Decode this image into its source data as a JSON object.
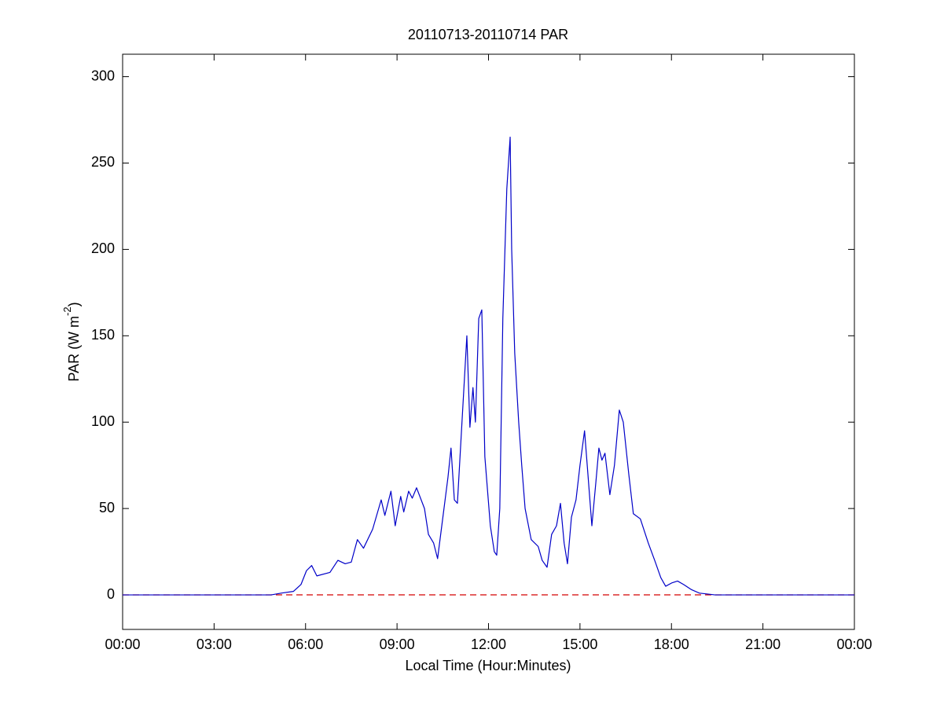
{
  "chart_data": {
    "type": "line",
    "title": "20110713-20110714 PAR",
    "xlabel": "Local Time (Hour:Minutes)",
    "ylabel": [
      "PAR (W m",
      "-2",
      ")"
    ],
    "xlim": [
      0,
      24
    ],
    "xticks": [
      {
        "value": 0,
        "label": "00:00"
      },
      {
        "value": 3,
        "label": "03:00"
      },
      {
        "value": 6,
        "label": "06:00"
      },
      {
        "value": 9,
        "label": "09:00"
      },
      {
        "value": 12,
        "label": "12:00"
      },
      {
        "value": 15,
        "label": "15:00"
      },
      {
        "value": 18,
        "label": "18:00"
      },
      {
        "value": 21,
        "label": "21:00"
      },
      {
        "value": 24,
        "label": "00:00"
      }
    ],
    "ylim": [
      -20,
      313
    ],
    "yticks": [
      0,
      50,
      100,
      150,
      200,
      250,
      300
    ],
    "grid": false,
    "hline": 0,
    "hline_color": "#d40000",
    "series": [
      {
        "color": "#0000c8",
        "x": [
          0,
          4.87,
          5.2,
          5.6,
          5.85,
          6.03,
          6.2,
          6.37,
          6.8,
          7.06,
          7.3,
          7.5,
          7.7,
          7.9,
          8.2,
          8.48,
          8.6,
          8.8,
          8.94,
          9.12,
          9.22,
          9.38,
          9.5,
          9.64,
          9.9,
          10.03,
          10.2,
          10.33,
          10.54,
          10.67,
          10.77,
          10.88,
          10.98,
          11.13,
          11.29,
          11.39,
          11.49,
          11.57,
          11.68,
          11.78,
          11.88,
          12.06,
          12.19,
          12.27,
          12.37,
          12.47,
          12.6,
          12.71,
          12.76,
          12.86,
          12.99,
          13.09,
          13.2,
          13.4,
          13.63,
          13.76,
          13.92,
          14.07,
          14.23,
          14.36,
          14.48,
          14.59,
          14.72,
          14.87,
          15.0,
          15.15,
          15.26,
          15.39,
          15.52,
          15.62,
          15.72,
          15.82,
          15.98,
          16.13,
          16.29,
          16.42,
          16.6,
          16.75,
          16.98,
          17.24,
          17.45,
          17.65,
          17.81,
          18.02,
          18.2,
          18.4,
          18.66,
          18.92,
          19.18,
          19.43,
          24
        ],
        "values": [
          0,
          0,
          1,
          2,
          6,
          14,
          17,
          11,
          13,
          20,
          18,
          19,
          32,
          27,
          38,
          55,
          46,
          60,
          40,
          57,
          48,
          60,
          56,
          62,
          50,
          35,
          30,
          21,
          50,
          68,
          85,
          55,
          53,
          100,
          150,
          97,
          120,
          100,
          160,
          165,
          80,
          40,
          25,
          23,
          50,
          160,
          235,
          265,
          200,
          140,
          100,
          75,
          50,
          32,
          28,
          20,
          16,
          35,
          40,
          53,
          30,
          18,
          45,
          55,
          75,
          95,
          70,
          40,
          65,
          85,
          78,
          82,
          58,
          75,
          107,
          100,
          70,
          47,
          44,
          30,
          20,
          10,
          5,
          7,
          8,
          6,
          3,
          1,
          0.5,
          0,
          0
        ]
      }
    ]
  }
}
